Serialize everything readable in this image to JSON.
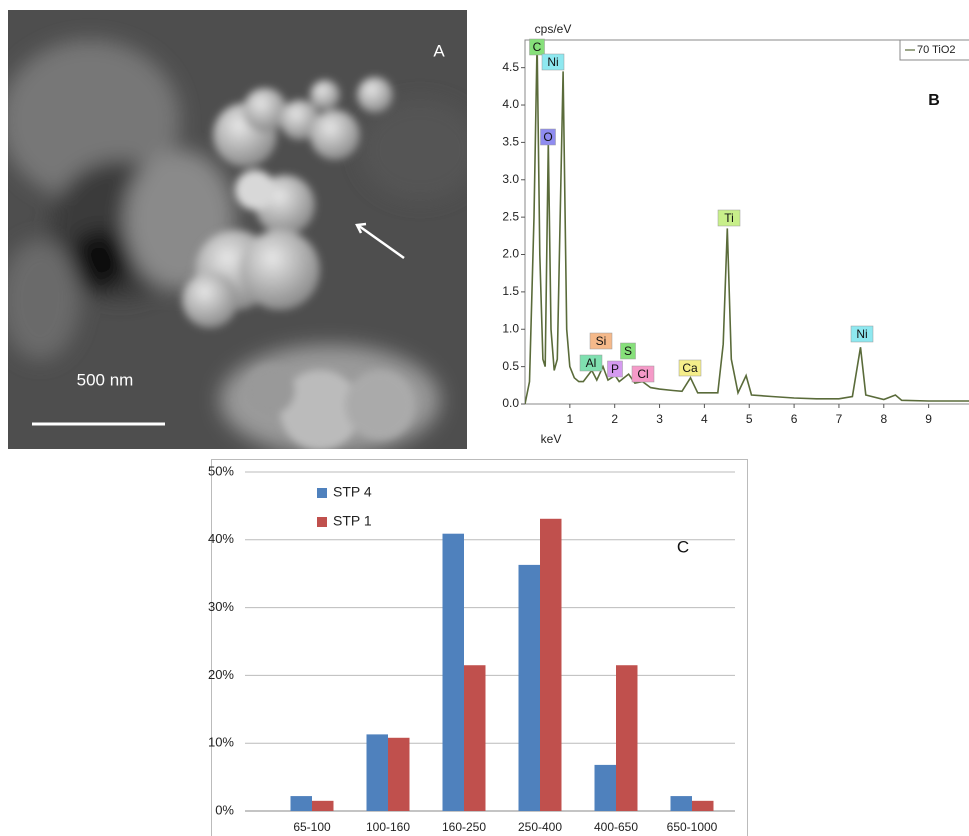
{
  "panel_a": {
    "label": "A",
    "scale_bar": "500 nm"
  },
  "chart_data": [
    {
      "type": "line",
      "panel_label": "B",
      "ylabel": "cps/eV",
      "xlabel": "keV",
      "x": [
        0.0,
        0.1,
        0.2,
        0.27,
        0.33,
        0.4,
        0.45,
        0.52,
        0.58,
        0.65,
        0.72,
        0.85,
        0.93,
        1.0,
        1.1,
        1.2,
        1.3,
        1.49,
        1.6,
        1.74,
        1.85,
        2.01,
        2.1,
        2.31,
        2.45,
        2.62,
        2.8,
        3.0,
        3.3,
        3.5,
        3.69,
        3.85,
        4.0,
        4.3,
        4.42,
        4.51,
        4.6,
        4.75,
        4.93,
        5.05,
        5.5,
        6.0,
        6.5,
        7.0,
        7.3,
        7.48,
        7.6,
        8.0,
        8.26,
        8.4,
        9.0,
        9.9
      ],
      "series": [
        {
          "name": "70 TiO2",
          "color": "#5a6b3a",
          "values": [
            0.0,
            0.3,
            2.5,
            4.85,
            2.0,
            0.6,
            0.5,
            3.5,
            1.0,
            0.45,
            0.6,
            4.45,
            1.0,
            0.5,
            0.35,
            0.3,
            0.3,
            0.45,
            0.32,
            0.5,
            0.32,
            0.38,
            0.3,
            0.4,
            0.28,
            0.3,
            0.22,
            0.2,
            0.18,
            0.17,
            0.35,
            0.15,
            0.15,
            0.15,
            0.8,
            2.35,
            0.6,
            0.15,
            0.38,
            0.12,
            0.1,
            0.08,
            0.07,
            0.07,
            0.1,
            0.76,
            0.12,
            0.06,
            0.12,
            0.05,
            0.04,
            0.04
          ]
        }
      ],
      "peaks": [
        {
          "label": "C",
          "x": 0.27,
          "y": 4.85,
          "color": "#86e07a"
        },
        {
          "label": "Ni",
          "x": 0.85,
          "y": 4.45,
          "color": "#8ee8f0"
        },
        {
          "label": "O",
          "x": 0.52,
          "y": 3.5,
          "color": "#8f8cf0"
        },
        {
          "label": "Al",
          "x": 1.49,
          "y": 0.45,
          "color": "#7fe0b0"
        },
        {
          "label": "Si",
          "x": 1.74,
          "y": 0.5,
          "color": "#f5b98a"
        },
        {
          "label": "P",
          "x": 2.01,
          "y": 0.38,
          "color": "#d59af0"
        },
        {
          "label": "S",
          "x": 2.31,
          "y": 0.4,
          "color": "#86e07a"
        },
        {
          "label": "Cl",
          "x": 2.62,
          "y": 0.3,
          "color": "#f59ac8"
        },
        {
          "label": "Ca",
          "x": 3.69,
          "y": 0.35,
          "color": "#f5ee8a"
        },
        {
          "label": "Ti",
          "x": 4.51,
          "y": 2.35,
          "color": "#c8ef8a"
        },
        {
          "label": "Ni",
          "x": 7.48,
          "y": 0.76,
          "color": "#8ee8f0"
        }
      ],
      "xlim": [
        0,
        9.9
      ],
      "ylim": [
        0,
        4.87
      ],
      "xticks": [
        1,
        2,
        3,
        4,
        5,
        6,
        7,
        8,
        9
      ],
      "yticks": [
        {
          "value": 0,
          "label": "0.0"
        },
        0.5,
        {
          "value": 1,
          "label": "1.0"
        },
        1.5,
        {
          "value": 2,
          "label": "2.0"
        },
        2.5,
        {
          "value": 3,
          "label": "3.0"
        },
        3.5,
        {
          "value": 4,
          "label": "4.0"
        },
        4.5
      ]
    },
    {
      "type": "bar",
      "panel_label": "C",
      "categories": [
        "65-100",
        "100-160",
        "160-250",
        "250-400",
        "400-650",
        "650-1000"
      ],
      "series": [
        {
          "name": "STP 4",
          "color": "#4f81bd",
          "values": [
            2.2,
            11.3,
            40.9,
            36.3,
            6.8,
            2.2
          ]
        },
        {
          "name": "STP 1",
          "color": "#c0504d",
          "values": [
            1.5,
            10.8,
            21.5,
            43.1,
            21.5,
            1.5
          ]
        }
      ],
      "ylim": [
        0,
        50
      ],
      "yticks": [
        {
          "value": 0,
          "label": "0%"
        },
        {
          "value": 10,
          "label": "10%"
        },
        {
          "value": 20,
          "label": "20%"
        },
        {
          "value": 30,
          "label": "30%"
        },
        {
          "value": 40,
          "label": "40%"
        },
        {
          "value": 50,
          "label": "50%"
        }
      ],
      "grid": true,
      "legend": "upper left"
    }
  ]
}
